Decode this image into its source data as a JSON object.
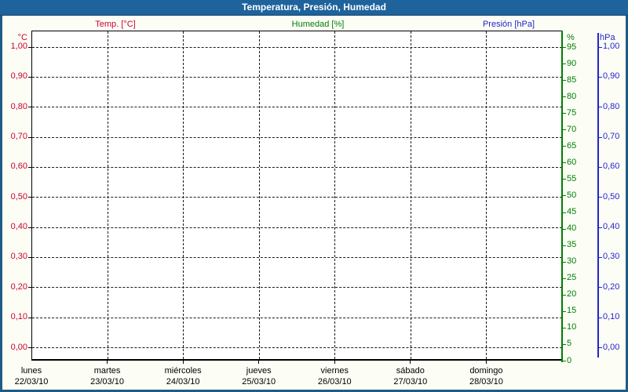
{
  "window": {
    "title": "Temperatura, Presión, Humedad"
  },
  "colors": {
    "titlebar": "#1f639c",
    "frame_border": "#1e5c85",
    "temp": "#cc0033",
    "humidity": "#007d00",
    "pressure": "#2424cc",
    "grid": "#1b1b1b",
    "page_background": "#fcfef6",
    "plot_background": "#ffffff"
  },
  "chart_data": {
    "type": "line",
    "title": "Temperatura, Presión, Humedad",
    "grid": "dashed",
    "legend_position": "top",
    "x": {
      "day_names": [
        "lunes",
        "martes",
        "miércoles",
        "jueves",
        "viernes",
        "sábado",
        "domingo"
      ],
      "categories": [
        "22/03/10",
        "23/03/10",
        "24/03/10",
        "25/03/10",
        "26/03/10",
        "27/03/10",
        "28/03/10"
      ]
    },
    "y_axes": [
      {
        "name": "Temp. [°C]",
        "unit": "°C",
        "side": "left",
        "color": "#cc0033",
        "min": 0.0,
        "max": 1.0,
        "tick_step": 0.1,
        "tick_labels": [
          "1,00",
          "0,90",
          "0,80",
          "0,70",
          "0,60",
          "0,50",
          "0,40",
          "0,30",
          "0,20",
          "0,10",
          "0,00"
        ]
      },
      {
        "name": "Humedad [%]",
        "unit": "%",
        "side": "right",
        "color": "#007d00",
        "min": 0,
        "max": 95,
        "tick_step": 5,
        "tick_labels": [
          "95",
          "90",
          "85",
          "80",
          "75",
          "70",
          "65",
          "60",
          "55",
          "50",
          "45",
          "40",
          "35",
          "30",
          "25",
          "20",
          "15",
          "10",
          "5",
          "0"
        ]
      },
      {
        "name": "Presión [hPa]",
        "unit": "hPa",
        "side": "right-outer",
        "color": "#2424cc",
        "min": 0.0,
        "max": 1.0,
        "tick_step": 0.1,
        "tick_labels": [
          "1,00",
          "0,90",
          "0,80",
          "0,70",
          "0,60",
          "0,50",
          "0,40",
          "0,30",
          "0,20",
          "0,10",
          "0,00"
        ]
      }
    ],
    "series": [
      {
        "name": "Temp. [°C]",
        "axis": "left",
        "values": []
      },
      {
        "name": "Humedad [%]",
        "axis": "right",
        "values": []
      },
      {
        "name": "Presión [hPa]",
        "axis": "right-outer",
        "values": []
      }
    ]
  }
}
